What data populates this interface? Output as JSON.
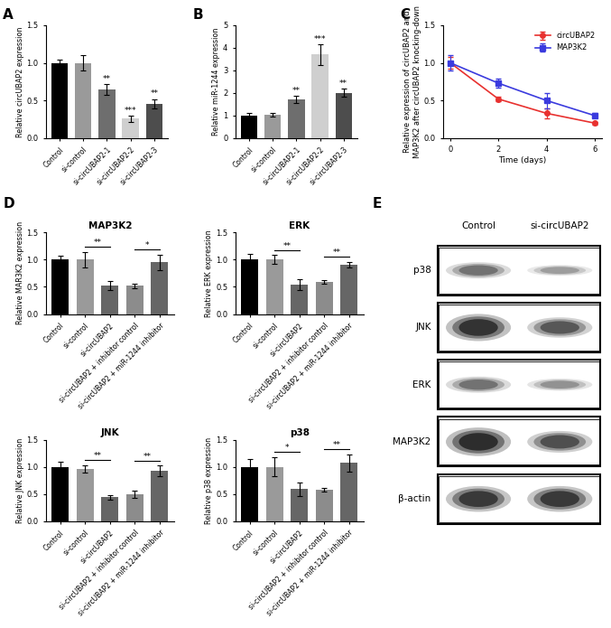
{
  "chart_data": [
    {
      "type": "bar",
      "panel_label": "A",
      "categories": [
        "Control",
        "si-control",
        "si-circUBAP2-1",
        "si-circUBAP2-2",
        "si-circUBAP2-3"
      ],
      "values": [
        1.0,
        1.0,
        0.65,
        0.26,
        0.46
      ],
      "errors": [
        0.04,
        0.1,
        0.07,
        0.04,
        0.06
      ],
      "annotations": [
        null,
        null,
        "**",
        "***",
        "**"
      ],
      "colors": [
        "#000000",
        "#9a9a9a",
        "#6e6e6e",
        "#cfcfcf",
        "#4d4d4d"
      ],
      "y_label": "Relative circUBAP2 expression",
      "ylim": [
        0,
        1.5
      ],
      "yticks": [
        {
          "value": 0,
          "label": "0.0"
        },
        {
          "value": 0.5,
          "label": "0.5"
        },
        {
          "value": 1,
          "label": "1.0"
        },
        {
          "value": 1.5,
          "label": "1.5"
        }
      ]
    },
    {
      "type": "bar",
      "panel_label": "B",
      "categories": [
        "Control",
        "si-control",
        "si-circUBAP2-1",
        "si-circUBAP2-2",
        "si-circUBAP2-3"
      ],
      "values": [
        1.0,
        1.05,
        1.72,
        3.7,
        2.0
      ],
      "errors": [
        0.12,
        0.08,
        0.15,
        0.45,
        0.18
      ],
      "annotations": [
        null,
        null,
        "**",
        "***",
        "**"
      ],
      "colors": [
        "#000000",
        "#9a9a9a",
        "#6e6e6e",
        "#cfcfcf",
        "#4d4d4d"
      ],
      "y_label": "Relative miR-1244 expression",
      "ylim": [
        0,
        5
      ],
      "yticks": [
        0,
        1,
        2,
        3,
        4,
        5
      ]
    },
    {
      "type": "line",
      "panel_label": "C",
      "x": [
        0,
        2,
        4,
        6
      ],
      "series": [
        {
          "name": "circUBAP2",
          "color": "#e8312f",
          "marker": "circle",
          "values": [
            1.0,
            0.52,
            0.33,
            0.2
          ],
          "errors": [
            0.08,
            0.03,
            0.07,
            0.02
          ]
        },
        {
          "name": "MAP3K2",
          "color": "#3b3bde",
          "marker": "square",
          "values": [
            1.0,
            0.73,
            0.5,
            0.3
          ],
          "errors": [
            0.1,
            0.06,
            0.1,
            0.03
          ]
        }
      ],
      "x_label": "Time (days)",
      "y_label": "Relative expression of circUBAP2 and MAP3K2 after circUBAP2 knocking-down",
      "xlim": [
        -0.3,
        6.3
      ],
      "xticks": [
        0,
        2,
        4,
        6
      ],
      "ylim": [
        0,
        1.5
      ],
      "yticks": [
        {
          "value": 0,
          "label": "0.0"
        },
        {
          "value": 0.5,
          "label": "0.5"
        },
        {
          "value": 1,
          "label": "1.0"
        },
        {
          "value": 1.5,
          "label": "1.5"
        }
      ],
      "legend": "upper right"
    },
    {
      "type": "bar",
      "panel_label": "D",
      "title": "MAP3K2",
      "categories": [
        "Control",
        "si-control",
        "si-circUBAP2",
        "si-circUBAP2 + inhibitor control",
        "si-circUBAP2 + miR-1244 inhibitor"
      ],
      "values": [
        1.0,
        1.0,
        0.52,
        0.52,
        0.95
      ],
      "errors": [
        0.07,
        0.14,
        0.08,
        0.04,
        0.14
      ],
      "comparisons": [
        {
          "bars": [
            1,
            2
          ],
          "label": "**"
        },
        {
          "bars": [
            3,
            4
          ],
          "label": "*"
        }
      ],
      "colors": [
        "#000000",
        "#9a9a9a",
        "#666666",
        "#8c8c8c",
        "#666666"
      ],
      "y_label": "Relative MAR3K2 expression",
      "ylim": [
        0,
        1.5
      ],
      "yticks": [
        {
          "value": 0,
          "label": "0.0"
        },
        {
          "value": 0.5,
          "label": "0.5"
        },
        {
          "value": 1,
          "label": "1.0"
        },
        {
          "value": 1.5,
          "label": "1.5"
        }
      ]
    },
    {
      "type": "bar",
      "title": "ERK",
      "categories": [
        "Control",
        "si-control",
        "si-circUBAP2",
        "si-circUBAP2 + inhibitor control",
        "si-circUBAP2 + miR-1244 inhibitor"
      ],
      "values": [
        1.0,
        1.0,
        0.54,
        0.59,
        0.91
      ],
      "errors": [
        0.1,
        0.08,
        0.1,
        0.04,
        0.05
      ],
      "comparisons": [
        {
          "bars": [
            1,
            2
          ],
          "label": "**"
        },
        {
          "bars": [
            3,
            4
          ],
          "label": "**"
        }
      ],
      "colors": [
        "#000000",
        "#9a9a9a",
        "#666666",
        "#8c8c8c",
        "#666666"
      ],
      "y_label": "Relative ERK expression",
      "ylim": [
        0,
        1.5
      ],
      "yticks": [
        {
          "value": 0,
          "label": "0.0"
        },
        {
          "value": 0.5,
          "label": "0.5"
        },
        {
          "value": 1,
          "label": "1.0"
        },
        {
          "value": 1.5,
          "label": "1.5"
        }
      ]
    },
    {
      "type": "bar",
      "title": "JNK",
      "categories": [
        "Control",
        "si-control",
        "si-circUBAP2",
        "si-circUBAP2 + inhibitor control",
        "si-circUBAP2 + miR-1244 inhibitor"
      ],
      "values": [
        1.0,
        0.96,
        0.44,
        0.5,
        0.92
      ],
      "errors": [
        0.1,
        0.07,
        0.04,
        0.07,
        0.1
      ],
      "comparisons": [
        {
          "bars": [
            1,
            2
          ],
          "label": "**"
        },
        {
          "bars": [
            3,
            4
          ],
          "label": "**"
        }
      ],
      "colors": [
        "#000000",
        "#9a9a9a",
        "#666666",
        "#8c8c8c",
        "#666666"
      ],
      "y_label": "Relative JNK expression",
      "ylim": [
        0,
        1.5
      ],
      "yticks": [
        {
          "value": 0,
          "label": "0.0"
        },
        {
          "value": 0.5,
          "label": "0.5"
        },
        {
          "value": 1,
          "label": "1.0"
        },
        {
          "value": 1.5,
          "label": "1.5"
        }
      ]
    },
    {
      "type": "bar",
      "title": "p38",
      "categories": [
        "Control",
        "si-control",
        "si-circUBAP2",
        "si-circUBAP2 + inhibitor control",
        "si-circUBAP2 + miR-1244 inhibitor"
      ],
      "values": [
        1.0,
        1.0,
        0.59,
        0.58,
        1.07
      ],
      "errors": [
        0.14,
        0.18,
        0.12,
        0.03,
        0.16
      ],
      "comparisons": [
        {
          "bars": [
            1,
            2
          ],
          "label": "*"
        },
        {
          "bars": [
            3,
            4
          ],
          "label": "**"
        }
      ],
      "colors": [
        "#000000",
        "#9a9a9a",
        "#666666",
        "#8c8c8c",
        "#666666"
      ],
      "y_label": "Relative p38 expression",
      "ylim": [
        0,
        1.5
      ],
      "yticks": [
        {
          "value": 0,
          "label": "0.0"
        },
        {
          "value": 0.5,
          "label": "0.5"
        },
        {
          "value": 1,
          "label": "1.0"
        },
        {
          "value": 1.5,
          "label": "1.5"
        }
      ]
    }
  ],
  "western_blot": {
    "panel_label": "E",
    "columns": [
      "Control",
      "si-circUBAP2"
    ],
    "rows": [
      "p38",
      "JNK",
      "ERK",
      "MAP3K2",
      "β-actin"
    ]
  }
}
